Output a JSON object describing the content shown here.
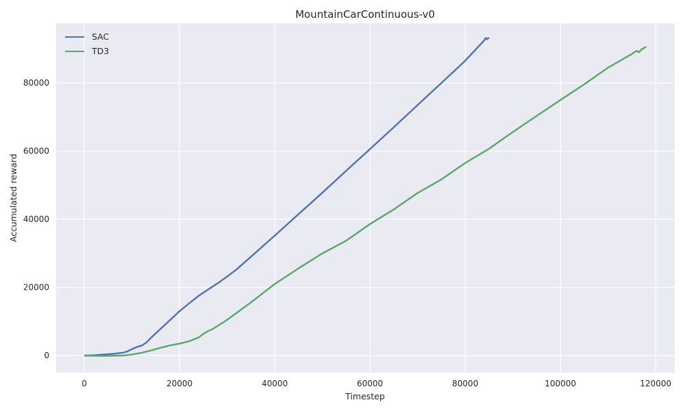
{
  "chart_data": {
    "type": "line",
    "title": "MountainCarContinuous-v0",
    "xlabel": "Timestep",
    "ylabel": "Accumulated reward",
    "xlim": [
      -5900,
      124000
    ],
    "ylim": [
      -5000,
      97500
    ],
    "xticks": [
      0,
      20000,
      40000,
      60000,
      80000,
      100000,
      120000
    ],
    "yticks": [
      0,
      20000,
      40000,
      60000,
      80000
    ],
    "xtick_labels": [
      "0",
      "20000",
      "40000",
      "60000",
      "80000",
      "100000",
      "120000"
    ],
    "ytick_labels": [
      "0",
      "20000",
      "40000",
      "60000",
      "80000"
    ],
    "grid": true,
    "legend_position": "upper-left",
    "series": [
      {
        "name": "SAC",
        "color": "#4c72b0",
        "x": [
          0,
          2000,
          4000,
          6000,
          8000,
          9000,
          10000,
          11000,
          12000,
          13000,
          14000,
          16000,
          18000,
          20000,
          22000,
          24000,
          26000,
          28000,
          30000,
          32000,
          35000,
          40000,
          45000,
          50000,
          55000,
          60000,
          65000,
          70000,
          75000,
          80000,
          84000,
          84300,
          84600,
          85000
        ],
        "y": [
          0,
          100,
          300,
          500,
          800,
          1200,
          1900,
          2500,
          2900,
          3800,
          5200,
          7800,
          10400,
          13000,
          15300,
          17500,
          19400,
          21200,
          23200,
          25300,
          29000,
          35200,
          41500,
          47800,
          54200,
          60600,
          67000,
          73500,
          80000,
          86500,
          92500,
          93200,
          92800,
          93300
        ]
      },
      {
        "name": "TD3",
        "color": "#55a868",
        "x": [
          0,
          4000,
          8000,
          10000,
          12000,
          14000,
          16000,
          18000,
          20000,
          22000,
          24000,
          25000,
          26000,
          27000,
          30000,
          35000,
          40000,
          45000,
          50000,
          55000,
          60000,
          65000,
          70000,
          75000,
          80000,
          85000,
          90000,
          95000,
          100000,
          105000,
          110000,
          115000,
          116000,
          116500,
          117000,
          118000
        ],
        "y": [
          0,
          -100,
          0,
          300,
          800,
          1500,
          2300,
          3000,
          3500,
          4200,
          5300,
          6400,
          7200,
          7800,
          10500,
          15600,
          21000,
          25600,
          30000,
          33700,
          38600,
          42900,
          47700,
          51700,
          56500,
          60700,
          65600,
          70300,
          75000,
          79600,
          84500,
          88500,
          89400,
          89000,
          89800,
          90600
        ]
      }
    ]
  }
}
